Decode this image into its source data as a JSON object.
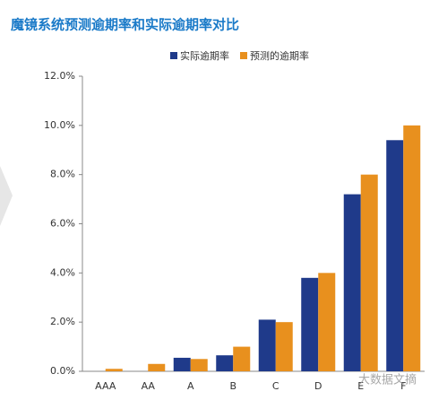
{
  "chart_data": {
    "type": "bar",
    "title": "魔镜系统预测逾期率和实际逾期率对比",
    "categories": [
      "AAA",
      "AA",
      "A",
      "B",
      "C",
      "D",
      "E",
      "F"
    ],
    "series": [
      {
        "name": "实际逾期率",
        "color": "#1f3a8a",
        "values": [
          0,
          0,
          0.55,
          0.65,
          2.1,
          3.8,
          7.2,
          9.4
        ]
      },
      {
        "name": "预测的逾期率",
        "color": "#e8901e",
        "values": [
          0.1,
          0.3,
          0.5,
          1.0,
          2.0,
          4.0,
          8.0,
          10.0
        ]
      }
    ],
    "ylim": [
      0,
      12
    ],
    "yticks": [
      {
        "value": 0,
        "label": "0.0%"
      },
      {
        "value": 2,
        "label": "2.0%"
      },
      {
        "value": 4,
        "label": "4.0%"
      },
      {
        "value": 6,
        "label": "6.0%"
      },
      {
        "value": 8,
        "label": "8.0%"
      },
      {
        "value": 10,
        "label": "10.0%"
      },
      {
        "value": 12,
        "label": "12.0%"
      }
    ],
    "legend_position": "top",
    "watermark": "大数据文摘"
  }
}
